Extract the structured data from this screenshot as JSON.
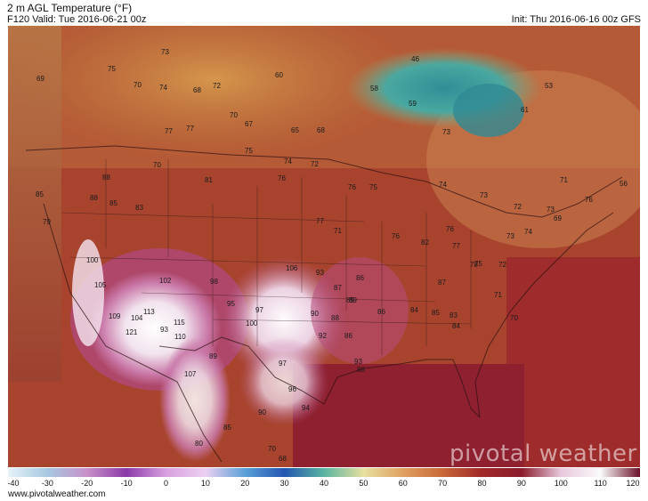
{
  "header": {
    "title": "2 m AGL Temperature (°F)",
    "valid": "F120 Valid: Tue 2016-06-21 00z",
    "init": "Init: Thu 2016-06-16 00z GFS"
  },
  "footer": {
    "url": "www.pivotalweather.com"
  },
  "brand": "pivotal weather",
  "colorbar": {
    "ticks": [
      "-40",
      "-30",
      "-20",
      "-10",
      "0",
      "10",
      "20",
      "30",
      "40",
      "50",
      "60",
      "70",
      "80",
      "90",
      "100",
      "110",
      "120"
    ],
    "stops": [
      "#e6f2f8",
      "#a6c8e0",
      "#c890c8",
      "#8a3aa8",
      "#d8a0e0",
      "#ecd0f0",
      "#5aa0d8",
      "#2456b0",
      "#58b4a0",
      "#e8e0a0",
      "#e0a060",
      "#c86838",
      "#a02828",
      "#8a1c2c",
      "#e8c8dc",
      "#fafafa",
      "#6a1028"
    ]
  },
  "map_labels": [
    {
      "t": "69"
    },
    {
      "t": "75"
    },
    {
      "t": "73"
    },
    {
      "t": "74"
    },
    {
      "t": "70"
    },
    {
      "t": "68"
    },
    {
      "t": "72"
    },
    {
      "t": "70"
    },
    {
      "t": "77"
    },
    {
      "t": "77"
    },
    {
      "t": "67"
    },
    {
      "t": "65"
    },
    {
      "t": "68"
    },
    {
      "t": "60"
    },
    {
      "t": "58"
    },
    {
      "t": "59"
    },
    {
      "t": "46"
    },
    {
      "t": "53"
    },
    {
      "t": "61"
    },
    {
      "t": "73"
    },
    {
      "t": "81"
    },
    {
      "t": "88"
    },
    {
      "t": "85"
    },
    {
      "t": "79"
    },
    {
      "t": "70"
    },
    {
      "t": "75"
    },
    {
      "t": "74"
    },
    {
      "t": "72"
    },
    {
      "t": "76"
    },
    {
      "t": "75"
    },
    {
      "t": "74"
    },
    {
      "t": "73"
    },
    {
      "t": "72"
    },
    {
      "t": "73"
    },
    {
      "t": "76"
    },
    {
      "t": "74"
    },
    {
      "t": "71"
    },
    {
      "t": "56"
    },
    {
      "t": "88"
    },
    {
      "t": "85"
    },
    {
      "t": "83"
    },
    {
      "t": "76"
    },
    {
      "t": "77"
    },
    {
      "t": "71"
    },
    {
      "t": "76"
    },
    {
      "t": "76"
    },
    {
      "t": "73"
    },
    {
      "t": "69"
    },
    {
      "t": "100"
    },
    {
      "t": "105"
    },
    {
      "t": "109"
    },
    {
      "t": "104"
    },
    {
      "t": "113"
    },
    {
      "t": "115"
    },
    {
      "t": "121"
    },
    {
      "t": "110"
    },
    {
      "t": "102"
    },
    {
      "t": "98"
    },
    {
      "t": "95"
    },
    {
      "t": "100"
    },
    {
      "t": "97"
    },
    {
      "t": "106"
    },
    {
      "t": "93"
    },
    {
      "t": "87"
    },
    {
      "t": "89"
    },
    {
      "t": "86"
    },
    {
      "t": "90"
    },
    {
      "t": "92"
    },
    {
      "t": "88"
    },
    {
      "t": "86"
    },
    {
      "t": "89"
    },
    {
      "t": "86"
    },
    {
      "t": "84"
    },
    {
      "t": "85"
    },
    {
      "t": "83"
    },
    {
      "t": "84"
    },
    {
      "t": "87"
    },
    {
      "t": "82"
    },
    {
      "t": "77"
    },
    {
      "t": "78"
    },
    {
      "t": "75"
    },
    {
      "t": "72"
    },
    {
      "t": "71"
    },
    {
      "t": "70"
    },
    {
      "t": "107"
    },
    {
      "t": "93"
    },
    {
      "t": "90"
    },
    {
      "t": "89"
    },
    {
      "t": "85"
    },
    {
      "t": "80"
    },
    {
      "t": "70"
    },
    {
      "t": "68"
    },
    {
      "t": "97"
    },
    {
      "t": "96"
    },
    {
      "t": "94"
    },
    {
      "t": "93"
    },
    {
      "t": "88"
    }
  ]
}
